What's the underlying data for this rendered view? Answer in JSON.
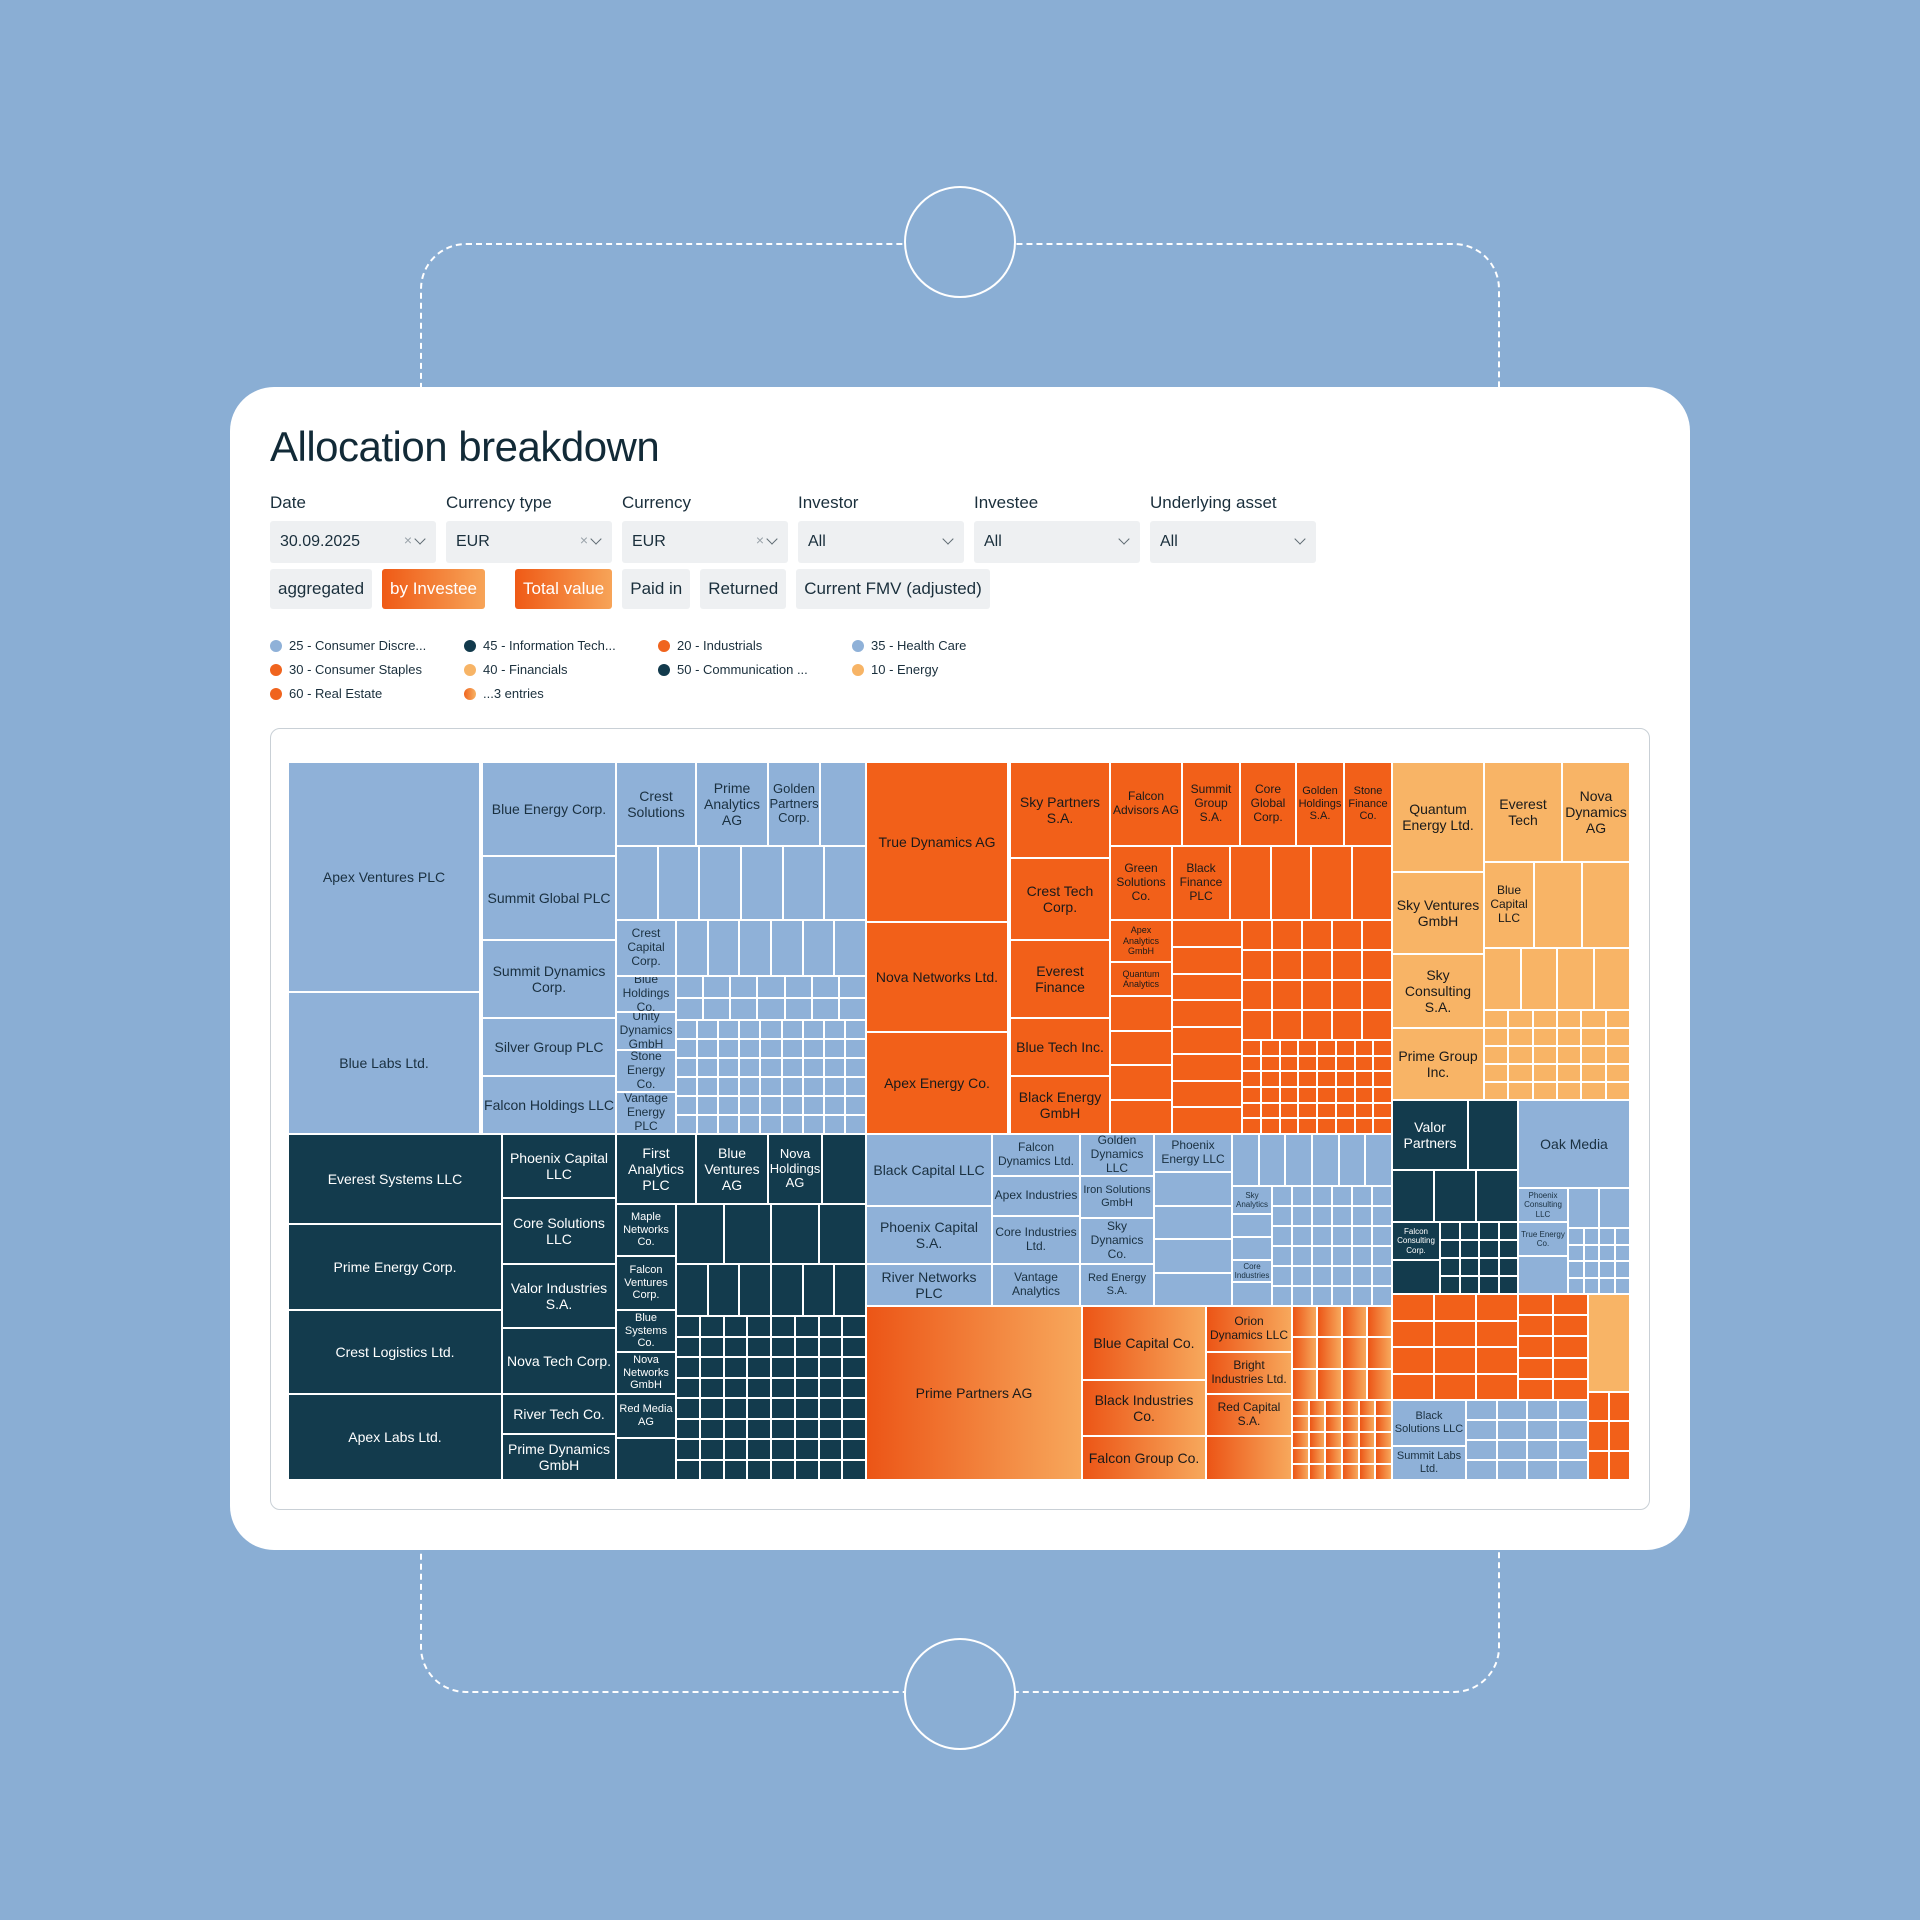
{
  "page": {
    "title": "Allocation breakdown"
  },
  "filters": [
    {
      "label": "Date",
      "value": "30.09.2025",
      "clearable": true
    },
    {
      "label": "Currency type",
      "value": "EUR",
      "clearable": true
    },
    {
      "label": "Currency",
      "value": "EUR",
      "clearable": true
    },
    {
      "label": "Investor",
      "value": "All",
      "clearable": false
    },
    {
      "label": "Investee",
      "value": "All",
      "clearable": false
    },
    {
      "label": "Underlying asset",
      "value": "All",
      "clearable": false
    }
  ],
  "view_toggles": [
    {
      "label": "aggregated",
      "active": false
    },
    {
      "label": "by Investee",
      "active": true
    }
  ],
  "measure_toggles": [
    {
      "label": "Total value",
      "active": true
    },
    {
      "label": "Paid in",
      "active": false
    },
    {
      "label": "Returned",
      "active": false
    },
    {
      "label": "Current FMV (adjusted)",
      "active": false
    }
  ],
  "legend": [
    {
      "label": "25 - Consumer Discre...",
      "color": "#8fb1d8"
    },
    {
      "label": "30 - Consumer Staples",
      "color": "#f0641e"
    },
    {
      "label": "60 - Real Estate",
      "color": "#f0641e"
    },
    {
      "label": "45 - Information Tech...",
      "color": "#123a4c"
    },
    {
      "label": "40 - Financials",
      "color": "#f7b466"
    },
    {
      "label": "...3 entries",
      "color": "gradient"
    },
    {
      "label": "20 - Industrials",
      "color": "#f0641e"
    },
    {
      "label": "50 - Communication ...",
      "color": "#123a4c"
    },
    {
      "label": "35 - Health Care",
      "color": "#8fb1d8"
    },
    {
      "label": "10 - Energy",
      "color": "#f7b466"
    }
  ],
  "colors": {
    "light_blue": "#8fb1d8",
    "dark_teal": "#133b4d",
    "orange": "#f26019",
    "peach": "#f8b466",
    "accent_gradient": [
      "#ec5516",
      "#f7a85c"
    ]
  },
  "treemap_labels": [
    "Apex Ventures PLC",
    "Blue Labs Ltd.",
    "Blue Energy Corp.",
    "Summit Global PLC",
    "Summit Dynamics Corp.",
    "Silver Group PLC",
    "Falcon Holdings LLC",
    "Crest Solutions",
    "Prime Analytics AG",
    "Golden Partners Corp.",
    "Crest Capital Corp.",
    "Blue Holdings Co.",
    "Unity Dynamics GmbH",
    "Stone Energy Co.",
    "Vantage Energy PLC",
    "Everest Systems LLC",
    "Prime Energy Corp.",
    "Crest Logistics Ltd.",
    "Apex Labs Ltd.",
    "Phoenix Capital LLC",
    "Core Solutions LLC",
    "Valor Industries S.A.",
    "Nova Tech Corp.",
    "River Tech Co.",
    "Prime Dynamics GmbH",
    "First Analytics PLC",
    "Blue Ventures AG",
    "Nova Holdings AG",
    "Maple Networks Co.",
    "Falcon Ventures Corp.",
    "Blue Systems Co.",
    "Nova Networks GmbH",
    "Red Media AG",
    "True Dynamics AG",
    "Nova Networks Ltd.",
    "Apex Energy Co.",
    "Sky Partners S.A.",
    "Crest Tech Corp.",
    "Everest Finance",
    "Blue Tech Inc.",
    "Black Energy GmbH",
    "Falcon Advisors AG",
    "Summit Group S.A.",
    "Core Global Corp.",
    "Golden Holdings S.A.",
    "Stone Finance Co.",
    "Green Solutions Co.",
    "Black Finance PLC",
    "Apex Analytics GmbH",
    "Quantum Analytics",
    "Black Capital LLC",
    "Phoenix Capital S.A.",
    "River Networks PLC",
    "Falcon Dynamics Ltd.",
    "Apex Industries",
    "Core Industries Ltd.",
    "Vantage Analytics",
    "Golden Dynamics LLC",
    "Iron Solutions GmbH",
    "Sky Dynamics Co.",
    "Red Energy S.A.",
    "Phoenix Energy LLC",
    "Sky Analytics",
    "Core Industries",
    "Prime Partners AG",
    "Blue Capital Co.",
    "Black Industries Co.",
    "Falcon Group Co.",
    "Orion Dynamics LLC",
    "Bright Industries Ltd.",
    "Red Capital S.A.",
    "Quantum Energy Ltd.",
    "Everest Tech",
    "Nova Dynamics AG",
    "Sky Ventures GmbH",
    "Blue Capital LLC",
    "Sky Consulting S.A.",
    "Prime Group Inc.",
    "Valor Partners",
    "Oak Media",
    "Falcon Consulting Corp.",
    "Phoenix Consulting LLC",
    "True Energy Co.",
    "Black Solutions LLC",
    "Summit Labs Ltd."
  ]
}
